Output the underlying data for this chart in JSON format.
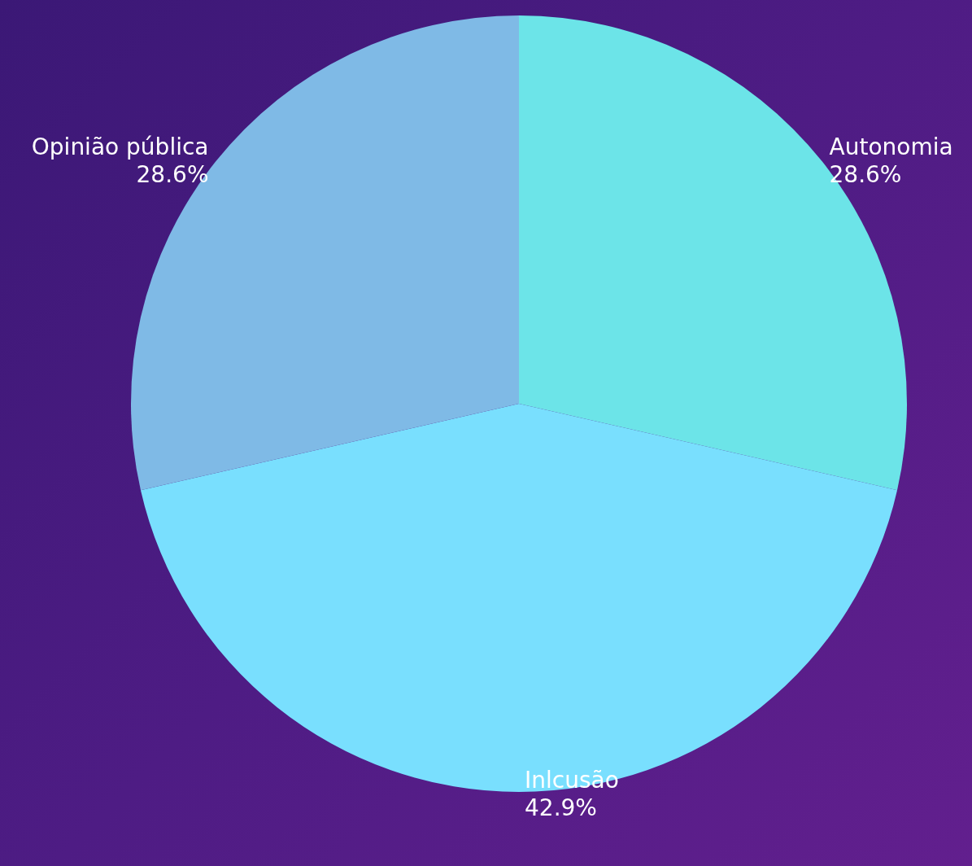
{
  "chart_data": {
    "type": "pie",
    "categories": [
      "Autonomia",
      "Inlcusão",
      "Opinião pública"
    ],
    "values": [
      28.6,
      42.9,
      28.6
    ],
    "colors": [
      "#6ce4e8",
      "#79dffe",
      "#7fbae6"
    ],
    "value_labels": [
      "28.6%",
      "42.9%",
      "28.6%"
    ]
  }
}
